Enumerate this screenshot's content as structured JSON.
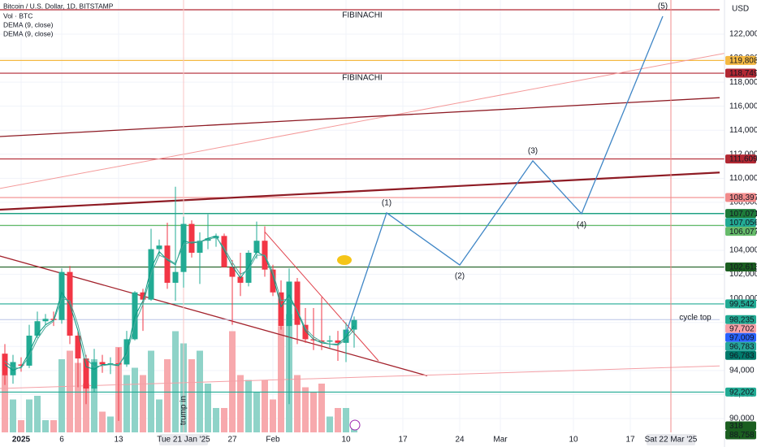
{
  "chart_data": {
    "type": "candlestick",
    "title": "Bitcoin / U.S. Dollar, 1D, BITSTAMP",
    "currency": "USD",
    "x": [
      "2024-12-30",
      "2024-12-31",
      "2025-01-01",
      "2025-01-02",
      "2025-01-03",
      "2025-01-04",
      "2025-01-05",
      "2025-01-06",
      "2025-01-07",
      "2025-01-08",
      "2025-01-09",
      "2025-01-10",
      "2025-01-11",
      "2025-01-12",
      "2025-01-13",
      "2025-01-14",
      "2025-01-15",
      "2025-01-16",
      "2025-01-17",
      "2025-01-18",
      "2025-01-19",
      "2025-01-20",
      "2025-01-21",
      "2025-01-22",
      "2025-01-23",
      "2025-01-24",
      "2025-01-25",
      "2025-01-26",
      "2025-01-27",
      "2025-01-28",
      "2025-01-29",
      "2025-01-30",
      "2025-01-31",
      "2025-02-01",
      "2025-02-02",
      "2025-02-03",
      "2025-02-04",
      "2025-02-05",
      "2025-02-06",
      "2025-02-07",
      "2025-02-08",
      "2025-02-09",
      "2025-02-10",
      "2025-02-11"
    ],
    "open": [
      95400,
      93600,
      94500,
      94400,
      96900,
      98100,
      98300,
      98200,
      102200,
      96900,
      95000,
      92500,
      94700,
      94500,
      94600,
      94500,
      96600,
      100500,
      99900,
      104100,
      104400,
      101300,
      102200,
      106200,
      103800,
      104800,
      105000,
      105200,
      102600,
      101800,
      101300,
      103800,
      104800,
      102400,
      100500,
      97700,
      101400,
      97800,
      96600,
      96500,
      96400,
      96500,
      96300,
      97400
    ],
    "high": [
      96200,
      95300,
      95100,
      97800,
      98900,
      98700,
      98900,
      102500,
      102700,
      97300,
      95300,
      95800,
      95300,
      95100,
      95900,
      97300,
      100600,
      100800,
      105800,
      104900,
      106300,
      109300,
      106800,
      106500,
      105500,
      107000,
      105400,
      105400,
      103200,
      103800,
      104000,
      106400,
      106000,
      102800,
      101500,
      102500,
      101700,
      99200,
      99200,
      100100,
      96900,
      97300,
      98000,
      98500
    ],
    "low": [
      92800,
      92900,
      93900,
      94200,
      96700,
      97800,
      97700,
      97900,
      96200,
      92600,
      91200,
      92200,
      93800,
      93700,
      89800,
      94300,
      96500,
      97300,
      99800,
      103500,
      100800,
      99800,
      100900,
      103400,
      101200,
      104100,
      104300,
      102600,
      97800,
      100200,
      101000,
      103300,
      101800,
      100200,
      97400,
      91200,
      96200,
      96300,
      95700,
      95700,
      95900,
      94800,
      94700,
      95900
    ],
    "close": [
      93600,
      94700,
      94400,
      96900,
      98100,
      98300,
      98200,
      102200,
      96900,
      95000,
      92500,
      94700,
      94500,
      94600,
      94500,
      96600,
      100500,
      99900,
      104100,
      104400,
      101300,
      102200,
      106200,
      103800,
      104800,
      105000,
      105200,
      102600,
      101800,
      101300,
      103800,
      104800,
      102400,
      100500,
      97700,
      101400,
      97800,
      96600,
      96500,
      96400,
      96500,
      96300,
      97400,
      98200
    ],
    "up_color": "#22ab94",
    "down_color": "#f23645",
    "volume": {
      "name": "Vol · BTC",
      "up_color": "#8fd3c8",
      "down_color": "#f7a9ad",
      "badge_color": "#1b5e20",
      "vlim": [
        0,
        6000
      ],
      "values": [
        2820,
        1620,
        600,
        1620,
        1800,
        600,
        600,
        3600,
        4020,
        3420,
        2400,
        3600,
        1020,
        780,
        4200,
        2820,
        3180,
        2820,
        4020,
        1620,
        3600,
        4980,
        4380,
        3600,
        4020,
        2400,
        1200,
        1200,
        4980,
        2820,
        2580,
        1980,
        2580,
        1620,
        5220,
        5820,
        2820,
        2220,
        1980,
        2400,
        780,
        1200,
        1200,
        318
      ]
    },
    "series": [
      {
        "name": "DEMA (9, close)",
        "color": "#089981",
        "values": [
          94500,
          94000,
          94300,
          95500,
          97000,
          97800,
          98200,
          100500,
          99500,
          97300,
          94300,
          94100,
          94500,
          94500,
          94400,
          95500,
          98500,
          99800,
          102500,
          103900,
          103200,
          102800,
          104800,
          104600,
          104700,
          105000,
          105200,
          104000,
          102700,
          101700,
          102600,
          103900,
          103500,
          101900,
          99300,
          100300,
          98900,
          97300,
          96600,
          96300,
          96200,
          96200,
          96800,
          97700
        ]
      },
      {
        "name": "DEMA (9, close)",
        "color": "#4aa99a",
        "values": [
          94800,
          94200,
          94200,
          95200,
          96600,
          97600,
          98100,
          100000,
          99800,
          97800,
          95000,
          94300,
          94400,
          94500,
          94500,
          95300,
          97900,
          99500,
          102000,
          103600,
          103300,
          102900,
          104500,
          104700,
          104700,
          104900,
          105100,
          104200,
          103000,
          102000,
          102400,
          103600,
          103600,
          102200,
          99800,
          100000,
          99000,
          97500,
          96800,
          96400,
          96200,
          96100,
          96600,
          97400
        ]
      }
    ],
    "xlim": [
      "2024-12-29",
      "2025-03-28"
    ],
    "xticks": [
      {
        "value": "2025-01-01",
        "label": "2025"
      },
      {
        "value": "2025-01-06",
        "label": "6"
      },
      {
        "value": "2025-01-13",
        "label": "13"
      },
      {
        "value": "2025-01-27",
        "label": "27"
      },
      {
        "value": "2025-02-01",
        "label": "Feb"
      },
      {
        "value": "2025-02-10",
        "label": "10"
      },
      {
        "value": "2025-02-17",
        "label": "17"
      },
      {
        "value": "2025-02-24",
        "label": "24"
      },
      {
        "value": "2025-03-01",
        "label": "Mar"
      },
      {
        "value": "2025-03-10",
        "label": "10"
      },
      {
        "value": "2025-03-17",
        "label": "17"
      }
    ],
    "ylim": [
      88847,
      124842
    ],
    "yticks": [
      {
        "value": 90000,
        "label": "90,000"
      },
      {
        "value": 92000,
        "label": "92,000"
      },
      {
        "value": 94000,
        "label": "94,000"
      },
      {
        "value": 96000,
        "label": "96,000"
      },
      {
        "value": 98000,
        "label": "98,000"
      },
      {
        "value": 100000,
        "label": "100,000"
      },
      {
        "value": 102000,
        "label": "102,000"
      },
      {
        "value": 104000,
        "label": "104,000"
      },
      {
        "value": 106000,
        "label": "106,000"
      },
      {
        "value": 108000,
        "label": "108,000"
      },
      {
        "value": 110000,
        "label": "110,000"
      },
      {
        "value": 112000,
        "label": "112,000"
      },
      {
        "value": 114000,
        "label": "114,000"
      },
      {
        "value": 116000,
        "label": "116,000"
      },
      {
        "value": 118000,
        "label": "118,000"
      },
      {
        "value": 120000,
        "label": "120,000"
      },
      {
        "value": 122000,
        "label": "122,000"
      }
    ],
    "grid": true,
    "levels": [
      {
        "value": 119808,
        "label": "119,808",
        "color": "#f5b942",
        "line": true
      },
      {
        "value": 118749,
        "label": "118,749",
        "color": "#b22833",
        "line": true
      },
      {
        "value": 111609,
        "label": "111,609",
        "color": "#b22833",
        "line": true
      },
      {
        "value": 108397,
        "label": "108,397",
        "color": "#f28b8b",
        "line": true
      },
      {
        "value": 107071,
        "label": "107,071",
        "color": "#1e7b3a",
        "line": true
      },
      {
        "value": 107056,
        "label": "107,056",
        "color": "#22ab94",
        "line": true
      },
      {
        "value": 106077,
        "label": "106,077",
        "color": "#66bb6a",
        "line": true
      },
      {
        "value": 102613,
        "label": "102,613",
        "color": "#1b5e20",
        "line": true
      },
      {
        "value": 99542,
        "label": "99,542",
        "color": "#22ab94",
        "line": true
      },
      {
        "value": 98235,
        "label": "98,235",
        "color": "#22ab94",
        "line": false
      },
      {
        "value": 97702,
        "label": "97,702",
        "color": "#f7a1a7",
        "line": false
      },
      {
        "value": 97009,
        "label": "97,009",
        "color": "#2962ff",
        "line": false
      },
      {
        "value": 96783,
        "label": "96,783",
        "color": "#26a69a",
        "line": false
      },
      {
        "value": 96783,
        "label": "96,783",
        "color": "#00796b",
        "line": false
      },
      {
        "value": 92202,
        "label": "92,202",
        "color": "#22ab94",
        "line": true
      },
      {
        "value": 88758,
        "label": "88,758",
        "color": "#1b5e20",
        "line": false
      }
    ],
    "lines": [
      {
        "color": "#b22833",
        "width": 1.2,
        "points": [
          [
            "2024-12-29",
            124030
          ],
          [
            "2025-03-28",
            124030
          ]
        ]
      },
      {
        "color": "#f49a9a",
        "width": 1,
        "points": [
          [
            "2024-12-29",
            109100
          ],
          [
            "2025-04-02",
            120960
          ]
        ]
      },
      {
        "color": "#8e1b24",
        "width": 1.3,
        "points": [
          [
            "2024-12-29",
            113460
          ],
          [
            "2025-03-28",
            116710
          ]
        ]
      },
      {
        "color": "#8e1b24",
        "width": 2.2,
        "points": [
          [
            "2024-12-29",
            107370
          ],
          [
            "2025-03-28",
            110480
          ]
        ]
      },
      {
        "color": "#a3222c",
        "width": 1.3,
        "points": [
          [
            "2024-12-29",
            103600
          ],
          [
            "2025-02-20",
            93560
          ]
        ]
      },
      {
        "color": "#f4a0a6",
        "width": 1,
        "points": [
          [
            "2024-12-29",
            92490
          ],
          [
            "2025-03-28",
            94380
          ]
        ]
      },
      {
        "color": "#e0424c",
        "width": 1,
        "points": [
          [
            "2025-01-31",
            105540
          ],
          [
            "2025-02-14",
            94800
          ]
        ]
      },
      {
        "color": "#b9c3e6",
        "width": 1,
        "points": [
          [
            "2024-12-29",
            98235
          ],
          [
            "2025-03-28",
            98235
          ]
        ]
      }
    ],
    "verticals": [
      {
        "x": "2025-01-21",
        "label": "Tue 21 Jan '25",
        "color": "#f8c6c6"
      },
      {
        "x": "2025-03-22",
        "label": "Sat 22 Mar '25",
        "color": "#f08b8b"
      }
    ],
    "wave": {
      "color": "#3f86c6",
      "points": [
        {
          "x": "2025-02-10",
          "y": 97100
        },
        {
          "x": "2025-02-15",
          "y": 107120,
          "label": "(1)"
        },
        {
          "x": "2025-02-24",
          "y": 102780,
          "label": "(2)"
        },
        {
          "x": "2025-03-05",
          "y": 111450,
          "label": "(3)"
        },
        {
          "x": "2025-03-11",
          "y": 107050,
          "label": "(4)"
        },
        {
          "x": "2025-03-21",
          "y": 123490,
          "label": "(5)"
        }
      ]
    },
    "annotations": [
      {
        "text": "FIBINACHI",
        "x": "2025-02-12",
        "y": 123556,
        "color": "#2e9e5b"
      },
      {
        "text": "FIBINACHI",
        "x": "2025-02-12",
        "y": 118346,
        "color": "#2e9e5b"
      },
      {
        "text": "cycle top",
        "x": "2025-03-25",
        "y": 98400,
        "color": "#3f86c6"
      },
      {
        "text": "trump in",
        "x": "2025-01-21",
        "y": 90672,
        "color": "#9aa0aa",
        "orientation": "vertical"
      }
    ]
  }
}
